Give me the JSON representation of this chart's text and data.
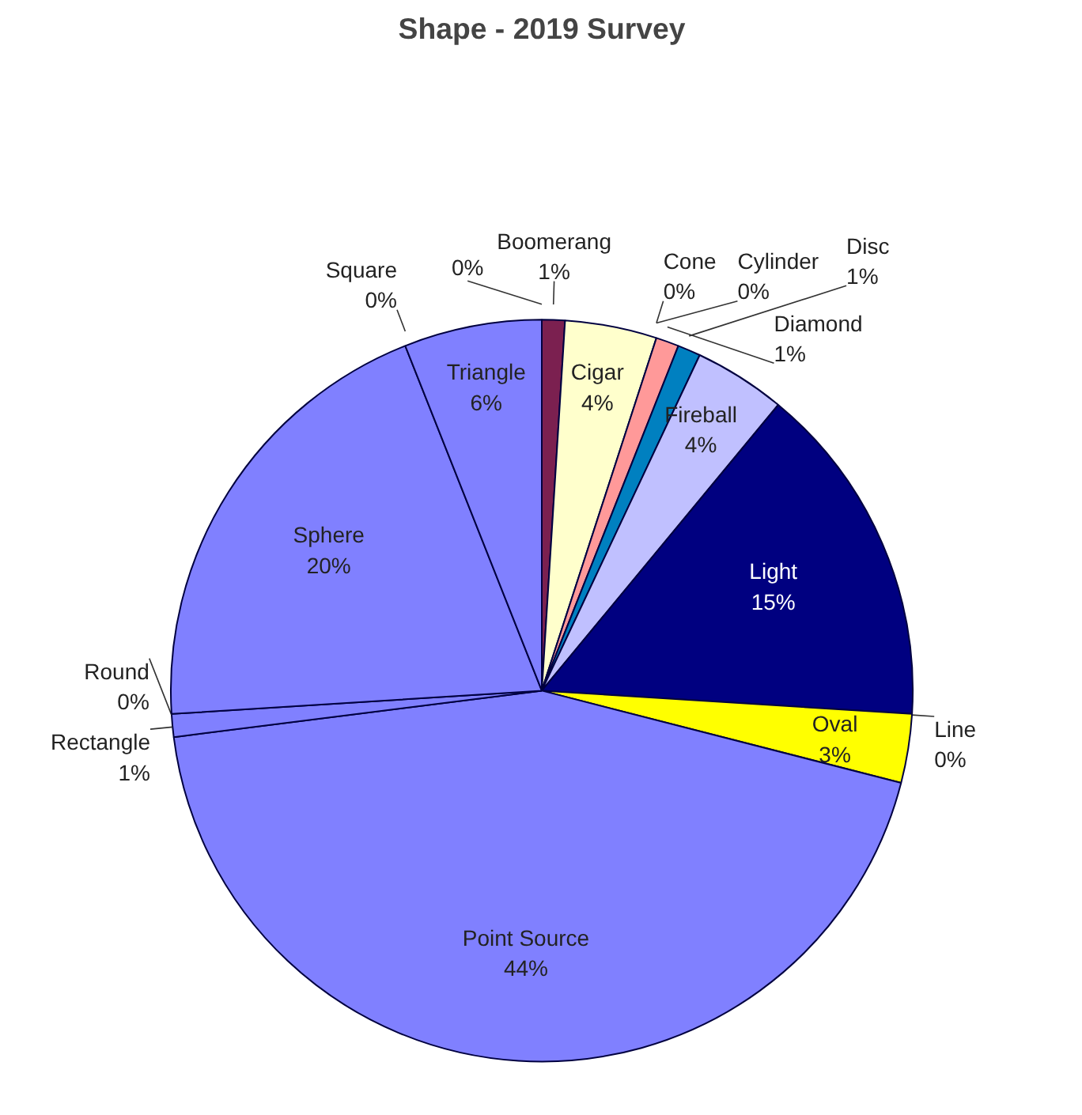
{
  "chart_data": {
    "type": "pie",
    "title": "Shape - 2019 Survey",
    "categories": [
      "Boomerang",
      "Cigar",
      "Cone",
      "Cylinder",
      "Diamond",
      "Disc",
      "Fireball",
      "Light",
      "Line",
      "Oval",
      "Point Source",
      "Rectangle",
      "Round",
      "Sphere",
      "Square",
      "Triangle",
      null
    ],
    "values": [
      1,
      4,
      0,
      0,
      1,
      1,
      4,
      15,
      0,
      3,
      44,
      1,
      0,
      20,
      0,
      6,
      0
    ],
    "value_labels": [
      "1%",
      "4%",
      "0%",
      "0%",
      "1%",
      "1%",
      "4%",
      "15%",
      "0%",
      "3%",
      "44%",
      "1%",
      "0%",
      "20%",
      "0%",
      "6%",
      "0%"
    ],
    "colors": [
      "#7b2050",
      "#ffffcc",
      "#800040",
      "#ff8080",
      "#ff9999",
      "#0080c0",
      "#c0c0ff",
      "#000080",
      "#8080ff",
      "#ffff00",
      "#8080ff",
      "#8080ff",
      "#8080ff",
      "#8080ff",
      "#8080ff",
      "#8080ff",
      "#8080ff"
    ]
  }
}
